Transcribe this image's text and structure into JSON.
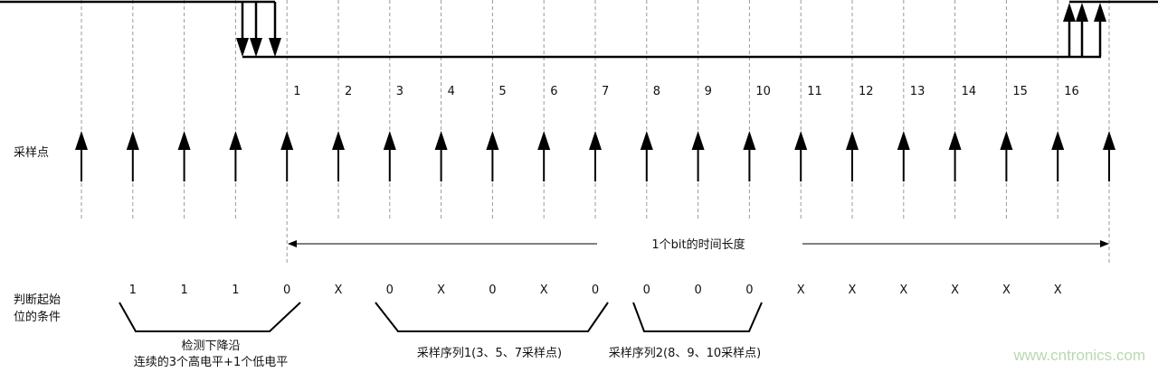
{
  "labels": {
    "sample_points": "采样点",
    "start_condition_line1": "判断起始",
    "start_condition_line2": "位的条件",
    "bit_duration": "1个bit的时间长度",
    "detect_falling_edge": "检测下降沿",
    "detect_rule": "连续的3个高电平+1个低电平",
    "sample_seq1": "采样序列1(3、5、7采样点)",
    "sample_seq2": "采样序列2(8、9、10采样点)",
    "watermark": "www.cntronics.com"
  },
  "sample_numbers": [
    "1",
    "2",
    "3",
    "4",
    "5",
    "6",
    "7",
    "8",
    "9",
    "10",
    "11",
    "12",
    "13",
    "14",
    "15",
    "16"
  ],
  "sample_values": [
    "1",
    "1",
    "1",
    "0",
    "X",
    "0",
    "X",
    "0",
    "X",
    "0",
    "0",
    "0",
    "0",
    "X",
    "X",
    "X",
    "X",
    "X",
    "X"
  ],
  "sample_arrow_count": 21,
  "colors": {
    "line": "#000000",
    "dash": "#999999",
    "watermark": "#b9d8b0"
  }
}
